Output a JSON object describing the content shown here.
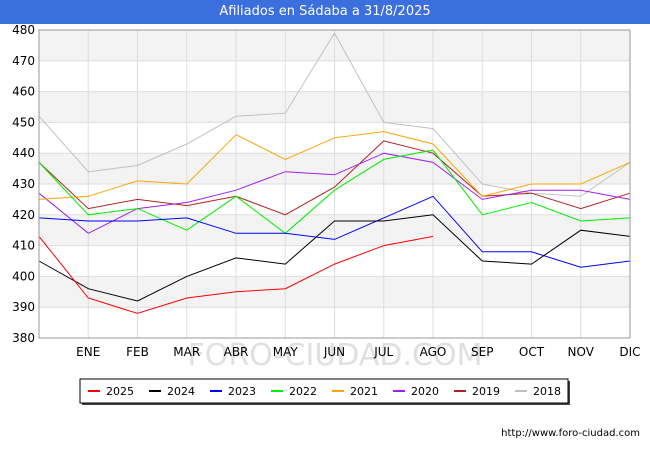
{
  "chart_data": {
    "type": "line",
    "title": "Afiliados en Sádaba a 31/8/2025",
    "categories": [
      "",
      "ENE",
      "FEB",
      "MAR",
      "ABR",
      "MAY",
      "JUN",
      "JUL",
      "AGO",
      "SEP",
      "OCT",
      "NOV",
      "DIC"
    ],
    "ylim": [
      380,
      480
    ],
    "yticks": [
      380,
      390,
      400,
      410,
      420,
      430,
      440,
      450,
      460,
      470,
      480
    ],
    "grid": true,
    "legend_position": "bottom",
    "series": [
      {
        "name": "2025",
        "color": "#ff0000",
        "values": [
          413,
          393,
          388,
          393,
          395,
          396,
          404,
          410,
          413,
          null,
          null,
          null,
          null
        ]
      },
      {
        "name": "2024",
        "color": "#000000",
        "values": [
          405,
          396,
          392,
          400,
          406,
          404,
          418,
          418,
          420,
          405,
          404,
          415,
          413
        ]
      },
      {
        "name": "2023",
        "color": "#0000ff",
        "values": [
          419,
          418,
          418,
          419,
          414,
          414,
          412,
          419,
          426,
          408,
          408,
          403,
          405
        ]
      },
      {
        "name": "2022",
        "color": "#00ee00",
        "values": [
          437,
          420,
          422,
          415,
          426,
          414,
          428,
          438,
          441,
          420,
          424,
          418,
          419
        ]
      },
      {
        "name": "2021",
        "color": "#ffa500",
        "values": [
          425,
          426,
          431,
          430,
          446,
          438,
          445,
          447,
          443,
          426,
          430,
          430,
          437
        ]
      },
      {
        "name": "2020",
        "color": "#a020f0",
        "values": [
          427,
          414,
          422,
          424,
          428,
          434,
          433,
          440,
          437,
          425,
          428,
          428,
          425
        ]
      },
      {
        "name": "2019",
        "color": "#b22222",
        "values": [
          437,
          422,
          425,
          423,
          426,
          420,
          429,
          444,
          440,
          426,
          427,
          422,
          427
        ]
      },
      {
        "name": "2018",
        "color": "#c0c0c0",
        "values": [
          452,
          434,
          436,
          443,
          452,
          453,
          479,
          450,
          448,
          430,
          427,
          426,
          437
        ]
      }
    ]
  },
  "watermark": "FORO-CIUDAD.COM",
  "source": "http://www.foro-ciudad.com"
}
